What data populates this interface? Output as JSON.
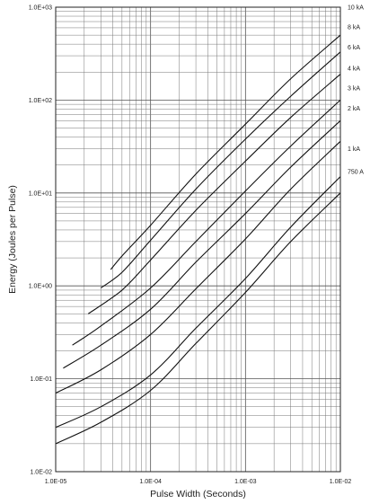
{
  "chart_data": {
    "type": "line",
    "title": "",
    "xlabel": "Pulse Width (Seconds)",
    "ylabel": "Energy (Joules per Pulse)",
    "xscale": "log",
    "yscale": "log",
    "xlim": [
      1e-05,
      0.01
    ],
    "ylim": [
      0.01,
      1000
    ],
    "grid": true,
    "legend": "inline-right",
    "x_ticks": [
      {
        "value": 1e-05,
        "label": "1.0E-05"
      },
      {
        "value": 0.0001,
        "label": "1.0E-04"
      },
      {
        "value": 0.001,
        "label": "1.0E-03"
      },
      {
        "value": 0.01,
        "label": "1.0E-02"
      }
    ],
    "y_ticks": [
      {
        "value": 0.01,
        "label": "1.0E-02"
      },
      {
        "value": 0.1,
        "label": "1.0E-01"
      },
      {
        "value": 1,
        "label": "1.0E+00"
      },
      {
        "value": 10,
        "label": "1.0E+01"
      },
      {
        "value": 100,
        "label": "1.0E+02"
      },
      {
        "value": 1000,
        "label": "1.0E+03"
      }
    ],
    "series": [
      {
        "name": "10 kA",
        "label_y": 1000,
        "points": [
          [
            3.8e-05,
            1.5
          ],
          [
            5e-05,
            2.1
          ],
          [
            0.0001,
            4.5
          ],
          [
            0.0003,
            16
          ],
          [
            0.001,
            55
          ],
          [
            0.003,
            170
          ],
          [
            0.01,
            500
          ]
        ]
      },
      {
        "name": "8 kA",
        "label_y": 610,
        "points": [
          [
            3e-05,
            0.95
          ],
          [
            5e-05,
            1.4
          ],
          [
            0.0001,
            3.1
          ],
          [
            0.0003,
            11
          ],
          [
            0.001,
            38
          ],
          [
            0.003,
            110
          ],
          [
            0.01,
            330
          ]
        ]
      },
      {
        "name": "6 kA",
        "label_y": 370,
        "points": [
          [
            2.2e-05,
            0.5
          ],
          [
            5e-05,
            0.9
          ],
          [
            0.0001,
            1.9
          ],
          [
            0.0003,
            6.5
          ],
          [
            0.001,
            22
          ],
          [
            0.003,
            65
          ],
          [
            0.01,
            190
          ]
        ]
      },
      {
        "name": "4 kA",
        "label_y": 220,
        "points": [
          [
            1.5e-05,
            0.23
          ],
          [
            3e-05,
            0.37
          ],
          [
            0.0001,
            0.95
          ],
          [
            0.0003,
            3
          ],
          [
            0.001,
            10.5
          ],
          [
            0.003,
            32
          ],
          [
            0.01,
            100
          ]
        ]
      },
      {
        "name": "3 kA",
        "label_y": 135,
        "points": [
          [
            1.2e-05,
            0.13
          ],
          [
            3e-05,
            0.23
          ],
          [
            0.0001,
            0.56
          ],
          [
            0.0003,
            1.8
          ],
          [
            0.001,
            6
          ],
          [
            0.003,
            19
          ],
          [
            0.01,
            60
          ]
        ]
      },
      {
        "name": "2 kA",
        "label_y": 82,
        "points": [
          [
            1e-05,
            0.07
          ],
          [
            3e-05,
            0.125
          ],
          [
            0.0001,
            0.3
          ],
          [
            0.0003,
            0.93
          ],
          [
            0.001,
            3.2
          ],
          [
            0.003,
            11
          ],
          [
            0.01,
            36
          ]
        ]
      },
      {
        "name": "1 kA",
        "label_y": 30,
        "points": [
          [
            1e-05,
            0.03
          ],
          [
            3e-05,
            0.05
          ],
          [
            0.0001,
            0.11
          ],
          [
            0.0003,
            0.35
          ],
          [
            0.001,
            1.2
          ],
          [
            0.003,
            4.3
          ],
          [
            0.01,
            15
          ]
        ]
      },
      {
        "name": "750 A",
        "label_y": 17,
        "points": [
          [
            1e-05,
            0.02
          ],
          [
            3e-05,
            0.034
          ],
          [
            0.0001,
            0.075
          ],
          [
            0.0003,
            0.24
          ],
          [
            0.001,
            0.85
          ],
          [
            0.003,
            3
          ],
          [
            0.01,
            10
          ]
        ]
      }
    ]
  }
}
